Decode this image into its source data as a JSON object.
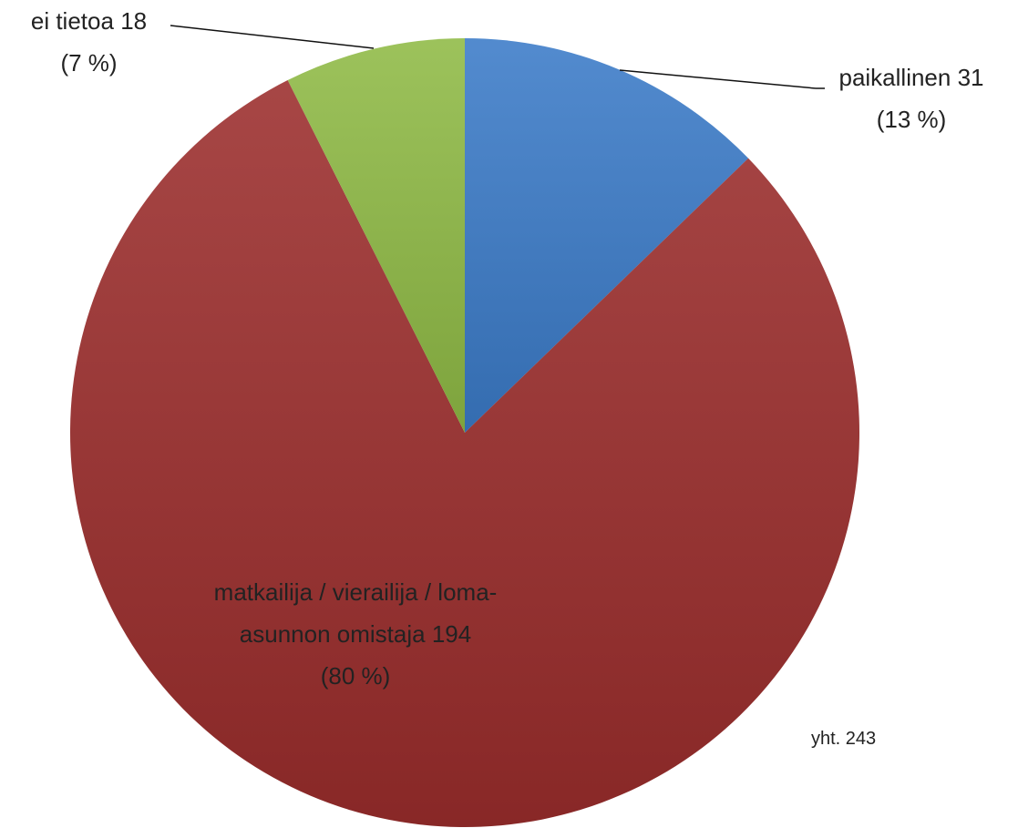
{
  "chart_data": {
    "type": "pie",
    "categories": [
      "paikallinen",
      "matkailija / vierailija / loma-asunnon omistaja",
      "ei tietoa"
    ],
    "values": [
      31,
      194,
      18
    ],
    "percent_labels": [
      "(13 %)",
      "(80 %)",
      "(7 %)"
    ],
    "colors": [
      "#3b7bc8",
      "#9b2d2c",
      "#8fba45"
    ],
    "annotation": "yht. 243"
  }
}
